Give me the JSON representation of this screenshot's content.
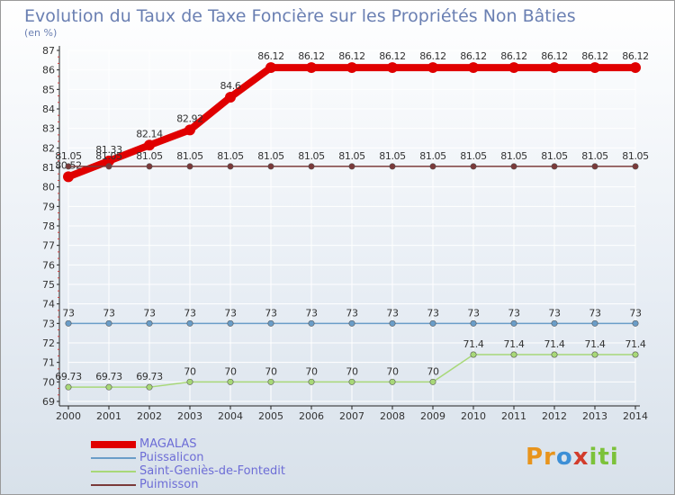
{
  "chart_data": {
    "type": "line",
    "title": "Evolution du Taux de Taxe Foncière sur les Propriétés Non Bâties",
    "subtitle": "(en %)",
    "x": [
      "2000",
      "2001",
      "2002",
      "2003",
      "2004",
      "2005",
      "2006",
      "2007",
      "2008",
      "2009",
      "2010",
      "2011",
      "2012",
      "2013",
      "2014"
    ],
    "ylim": [
      69,
      87
    ],
    "yticks": [
      69,
      70,
      71,
      72,
      73,
      74,
      75,
      76,
      77,
      78,
      79,
      80,
      81,
      82,
      83,
      84,
      85,
      86,
      87
    ],
    "series": [
      {
        "name": "MAGALAS",
        "color": "#e00000",
        "line_width": "thick",
        "values": [
          80.52,
          81.33,
          82.14,
          82.92,
          84.6,
          86.12,
          86.12,
          86.12,
          86.12,
          86.12,
          86.12,
          86.12,
          86.12,
          86.12,
          86.12
        ],
        "labels": [
          "80.52",
          "81.33",
          "82.14",
          "82.92",
          "84.6",
          "86.12",
          "86.12",
          "86.12",
          "86.12",
          "86.12",
          "86.12",
          "86.12",
          "86.12",
          "86.12",
          "86.12"
        ]
      },
      {
        "name": "Puissalicon",
        "color": "#6a9dc8",
        "line_width": "thin",
        "values": [
          73,
          73,
          73,
          73,
          73,
          73,
          73,
          73,
          73,
          73,
          73,
          73,
          73,
          73,
          73
        ],
        "labels": [
          "73",
          "73",
          "73",
          "73",
          "73",
          "73",
          "73",
          "73",
          "73",
          "73",
          "73",
          "73",
          "73",
          "73",
          "73"
        ]
      },
      {
        "name": "Saint-Geniès-de-Fontedit",
        "color": "#a8d878",
        "line_width": "thin",
        "values": [
          69.73,
          69.73,
          69.73,
          70,
          70,
          70,
          70,
          70,
          70,
          70,
          71.4,
          71.4,
          71.4,
          71.4,
          71.4
        ],
        "labels": [
          "69.73",
          "69.73",
          "69.73",
          "70",
          "70",
          "70",
          "70",
          "70",
          "70",
          "70",
          "71.4",
          "71.4",
          "71.4",
          "71.4",
          "71.4"
        ]
      },
      {
        "name": "Puimisson",
        "color": "#7a3a3a",
        "line_width": "thin",
        "values": [
          81.05,
          81.05,
          81.05,
          81.05,
          81.05,
          81.05,
          81.05,
          81.05,
          81.05,
          81.05,
          81.05,
          81.05,
          81.05,
          81.05,
          81.05
        ],
        "labels": [
          "81.05",
          "81.05",
          "81.05",
          "81.05",
          "81.05",
          "81.05",
          "81.05",
          "81.05",
          "81.05",
          "81.05",
          "81.05",
          "81.05",
          "81.05",
          "81.05",
          "81.05"
        ]
      }
    ],
    "legend_position": "bottom-left"
  },
  "logo": {
    "p1": "Pr",
    "p2": "o",
    "p3": "x",
    "p4": "iti"
  }
}
